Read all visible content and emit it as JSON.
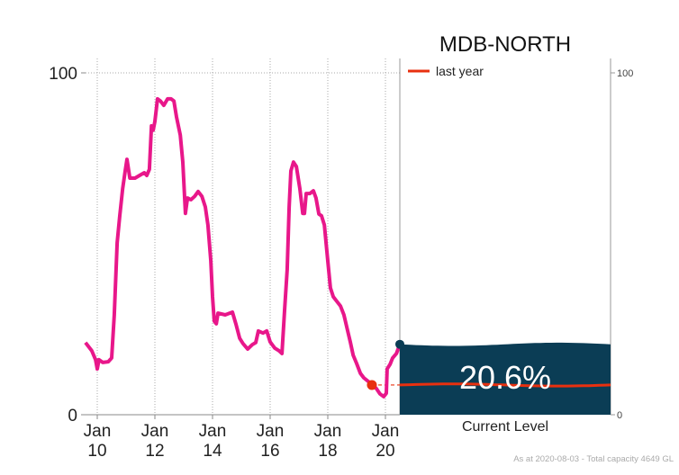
{
  "chart_data": {
    "type": "line",
    "title": "MDB-NORTH",
    "xlabel": "",
    "ylabel": "",
    "xlim": [
      2009.59,
      2020.5
    ],
    "ylim": [
      0,
      100
    ],
    "grid": true,
    "x_ticks": [
      {
        "value": 2010,
        "label": [
          "Jan",
          "10"
        ]
      },
      {
        "value": 2012,
        "label": [
          "Jan",
          "12"
        ]
      },
      {
        "value": 2014,
        "label": [
          "Jan",
          "14"
        ]
      },
      {
        "value": 2016,
        "label": [
          "Jan",
          "16"
        ]
      },
      {
        "value": 2018,
        "label": [
          "Jan",
          "18"
        ]
      },
      {
        "value": 2020,
        "label": [
          "Jan",
          "20"
        ]
      }
    ],
    "y_ticks": [
      "0",
      "100"
    ],
    "right_axis_ticks": [
      "0",
      "100"
    ],
    "series": [
      {
        "color": "#e8178a",
        "points": [
          [
            2009.59,
            21.1
          ],
          [
            2009.81,
            18.7
          ],
          [
            2009.94,
            16.1
          ],
          [
            2010.0,
            13.4
          ],
          [
            2010.06,
            16.1
          ],
          [
            2010.19,
            15.3
          ],
          [
            2010.38,
            15.5
          ],
          [
            2010.5,
            16.6
          ],
          [
            2010.59,
            29.2
          ],
          [
            2010.69,
            50.3
          ],
          [
            2010.78,
            58.2
          ],
          [
            2010.88,
            66.1
          ],
          [
            2010.97,
            71.3
          ],
          [
            2011.03,
            74.7
          ],
          [
            2011.13,
            69.2
          ],
          [
            2011.31,
            69.2
          ],
          [
            2011.47,
            70.0
          ],
          [
            2011.63,
            70.8
          ],
          [
            2011.72,
            70.0
          ],
          [
            2011.81,
            71.8
          ],
          [
            2011.88,
            84.5
          ],
          [
            2011.94,
            83.2
          ],
          [
            2012.0,
            85.8
          ],
          [
            2012.09,
            92.4
          ],
          [
            2012.19,
            91.8
          ],
          [
            2012.31,
            90.5
          ],
          [
            2012.44,
            92.4
          ],
          [
            2012.56,
            92.4
          ],
          [
            2012.66,
            91.8
          ],
          [
            2012.75,
            87.1
          ],
          [
            2012.88,
            81.8
          ],
          [
            2012.97,
            73.9
          ],
          [
            2013.06,
            58.9
          ],
          [
            2013.13,
            63.4
          ],
          [
            2013.25,
            62.9
          ],
          [
            2013.38,
            63.9
          ],
          [
            2013.5,
            65.3
          ],
          [
            2013.63,
            63.9
          ],
          [
            2013.75,
            60.8
          ],
          [
            2013.84,
            55.5
          ],
          [
            2013.94,
            45.0
          ],
          [
            2014.0,
            34.5
          ],
          [
            2014.06,
            27.4
          ],
          [
            2014.13,
            26.6
          ],
          [
            2014.19,
            29.7
          ],
          [
            2014.44,
            29.2
          ],
          [
            2014.69,
            30.0
          ],
          [
            2014.81,
            26.6
          ],
          [
            2014.94,
            22.4
          ],
          [
            2015.06,
            20.8
          ],
          [
            2015.22,
            19.2
          ],
          [
            2015.38,
            20.5
          ],
          [
            2015.5,
            21.1
          ],
          [
            2015.59,
            24.5
          ],
          [
            2015.75,
            23.9
          ],
          [
            2015.88,
            24.5
          ],
          [
            2016.0,
            21.3
          ],
          [
            2016.16,
            19.5
          ],
          [
            2016.31,
            18.7
          ],
          [
            2016.41,
            17.9
          ],
          [
            2016.5,
            30.5
          ],
          [
            2016.59,
            42.4
          ],
          [
            2016.66,
            60.8
          ],
          [
            2016.72,
            71.3
          ],
          [
            2016.81,
            73.9
          ],
          [
            2016.91,
            72.6
          ],
          [
            2017.03,
            66.1
          ],
          [
            2017.13,
            58.9
          ],
          [
            2017.19,
            58.9
          ],
          [
            2017.25,
            64.7
          ],
          [
            2017.38,
            64.7
          ],
          [
            2017.5,
            65.5
          ],
          [
            2017.59,
            63.4
          ],
          [
            2017.69,
            58.7
          ],
          [
            2017.78,
            58.2
          ],
          [
            2017.88,
            55.5
          ],
          [
            2018.0,
            45.0
          ],
          [
            2018.09,
            37.1
          ],
          [
            2018.19,
            34.5
          ],
          [
            2018.31,
            33.2
          ],
          [
            2018.44,
            31.8
          ],
          [
            2018.56,
            29.2
          ],
          [
            2018.69,
            24.5
          ],
          [
            2018.78,
            21.3
          ],
          [
            2018.88,
            17.4
          ],
          [
            2019.0,
            15.0
          ],
          [
            2019.13,
            12.1
          ],
          [
            2019.25,
            10.8
          ],
          [
            2019.44,
            9.5
          ],
          [
            2019.56,
            8.7
          ],
          [
            2019.69,
            7.6
          ],
          [
            2019.81,
            6.1
          ],
          [
            2019.94,
            5.3
          ],
          [
            2020.03,
            6.3
          ],
          [
            2020.06,
            13.4
          ],
          [
            2020.16,
            14.7
          ],
          [
            2020.25,
            16.6
          ],
          [
            2020.38,
            17.9
          ],
          [
            2020.5,
            20.6
          ]
        ]
      }
    ],
    "last_year": {
      "label": "last year",
      "x": 2019.53,
      "value": 8.7,
      "color": "#e8300f"
    },
    "current_level": {
      "value": 20.6,
      "label": "20.6%",
      "caption": "Current Level",
      "fill": "#0b3d55"
    },
    "legend": {
      "position": "top-right",
      "entries": [
        "last year"
      ]
    },
    "footnote": "As at 2020-08-03 - Total capacity 4649 GL"
  }
}
